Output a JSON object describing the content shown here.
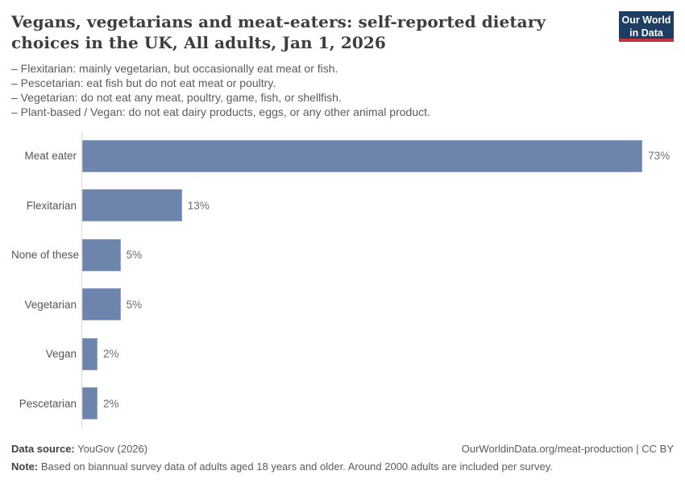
{
  "header": {
    "title": "Vegans, vegetarians and meat-eaters: self-reported dietary choices in the UK, All adults, Jan 1, 2026",
    "logo": {
      "line1": "Our World",
      "line2": "in Data"
    }
  },
  "subtitle_lines": [
    "– Flexitarian: mainly vegetarian, but occasionally eat meat or fish.",
    "– Pescetarian: eat fish but do not eat meat or poultry.",
    "– Vegetarian: do not eat any meat, poultry, game, fish, or shellfish.",
    "– Plant-based / Vegan: do not eat dairy products, eggs, or any other animal product."
  ],
  "chart_data": {
    "type": "bar",
    "orientation": "horizontal",
    "categories": [
      "Meat eater",
      "Flexitarian",
      "None of these",
      "Vegetarian",
      "Vegan",
      "Pescetarian"
    ],
    "values": [
      73,
      13,
      5,
      5,
      2,
      2
    ],
    "value_labels": [
      "73%",
      "13%",
      "5%",
      "5%",
      "2%",
      "2%"
    ],
    "unit": "%",
    "xlim": [
      0,
      77
    ],
    "grid": false,
    "legend": "none",
    "bar_color": "#6d84ad",
    "axis_line_color": "#dadada"
  },
  "footer": {
    "source_label": "Data source:",
    "source_text": " YouGov (2026)",
    "credit": "OurWorldinData.org/meat-production | CC BY",
    "note_label": "Note:",
    "note_text": " Based on biannual survey data of adults aged 18 years and older. Around 2000 adults are included per survey."
  },
  "colors": {
    "bar": "#6d84ad",
    "logo_navy": "#1d3d63",
    "logo_red": "#c7313a",
    "title_text": "#3d3d3d",
    "body_text": "#5b5b5b"
  }
}
